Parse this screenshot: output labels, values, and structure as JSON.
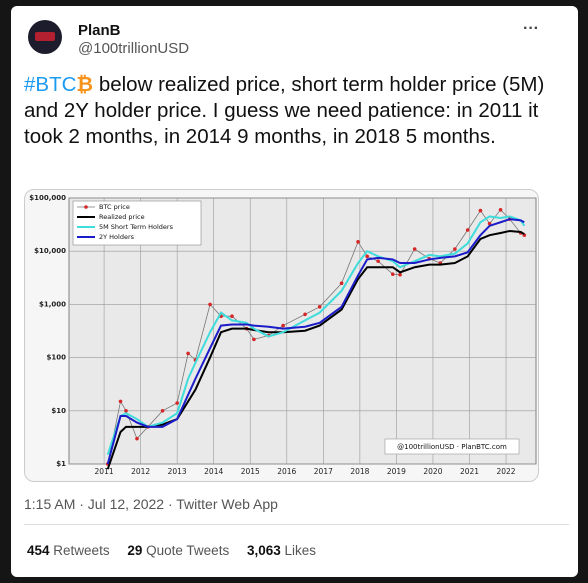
{
  "author": {
    "name": "PlanB",
    "handle": "@100trillionUSD"
  },
  "menu": "···",
  "tweet": {
    "hashtag": "#BTC",
    "emoji": "₿",
    "text": " below realized price, short term holder price (5M) and 2Y holder price.  I guess we need patience: in 2011 it took 2 months, in 2014 9 months, in 2018 5 months."
  },
  "chart_data": {
    "type": "line",
    "log_scale": true,
    "grid": true,
    "legend": "upper left",
    "annotation": "@100trillionUSD · PlanBTC.com",
    "x": [
      2011.1,
      2011.45,
      2011.6,
      2011.9,
      2012.2,
      2012.6,
      2013.0,
      2013.3,
      2013.5,
      2013.9,
      2014.2,
      2014.5,
      2014.9,
      2015.1,
      2015.5,
      2015.9,
      2016.5,
      2016.9,
      2017.5,
      2017.95,
      2018.2,
      2018.5,
      2018.9,
      2019.1,
      2019.5,
      2019.9,
      2020.2,
      2020.6,
      2020.95,
      2021.3,
      2021.55,
      2021.85,
      2022.1,
      2022.4,
      2022.5
    ],
    "series": [
      {
        "name": "BTC price",
        "color": "#d62728",
        "values": [
          1,
          15,
          10,
          3,
          5,
          10,
          14,
          120,
          90,
          1000,
          600,
          600,
          350,
          220,
          260,
          400,
          650,
          900,
          2500,
          15000,
          8000,
          6500,
          3700,
          3600,
          11000,
          7200,
          6000,
          11000,
          25000,
          58000,
          33000,
          60000,
          40000,
          22000,
          20000
        ]
      },
      {
        "name": "Realized price",
        "color": "#000000",
        "values": [
          0.8,
          4,
          5,
          5,
          5,
          5.5,
          7,
          15,
          25,
          100,
          300,
          350,
          350,
          330,
          300,
          300,
          320,
          400,
          800,
          3000,
          5000,
          5000,
          5000,
          4000,
          5000,
          5600,
          5600,
          6000,
          8000,
          17000,
          20000,
          22000,
          24000,
          23000,
          21000
        ]
      },
      {
        "name": "5M Short Term Holders",
        "color": "#3fdcdc",
        "values": [
          1.5,
          8,
          9,
          7,
          5,
          6,
          9,
          40,
          80,
          300,
          700,
          500,
          450,
          350,
          250,
          300,
          500,
          700,
          1800,
          6000,
          10000,
          8000,
          6500,
          5000,
          6500,
          8500,
          8000,
          9000,
          14000,
          35000,
          45000,
          42000,
          45000,
          38000,
          30000
        ]
      },
      {
        "name": "2Y Holders",
        "color": "#1c1cc8",
        "values": [
          1,
          8,
          8,
          6,
          5,
          5,
          7,
          20,
          40,
          150,
          400,
          420,
          420,
          400,
          380,
          350,
          380,
          450,
          900,
          3500,
          7000,
          7500,
          7000,
          6000,
          6000,
          7000,
          7500,
          8000,
          9500,
          20000,
          30000,
          35000,
          40000,
          38000,
          35000
        ]
      }
    ],
    "xlim": [
      2010.04,
      2022.82
    ],
    "xticks": [
      2011,
      2012,
      2013,
      2014,
      2015,
      2016,
      2017,
      2018,
      2019,
      2020,
      2021,
      2022
    ],
    "ylim": [
      1,
      100000
    ],
    "yticks": [
      {
        "value": 1,
        "label": "$1"
      },
      {
        "value": 10,
        "label": "$10"
      },
      {
        "value": 100,
        "label": "$100"
      },
      {
        "value": 1000,
        "label": "$1,000"
      },
      {
        "value": 10000,
        "label": "$10,000"
      },
      {
        "value": 100000,
        "label": "$100,000"
      }
    ]
  },
  "meta": {
    "timestamp": "1:15 AM · Jul 12, 2022 · Twitter Web App"
  },
  "stats": [
    {
      "count": "454",
      "label": "Retweets"
    },
    {
      "count": "29",
      "label": "Quote Tweets"
    },
    {
      "count": "3,063",
      "label": "Likes"
    }
  ]
}
